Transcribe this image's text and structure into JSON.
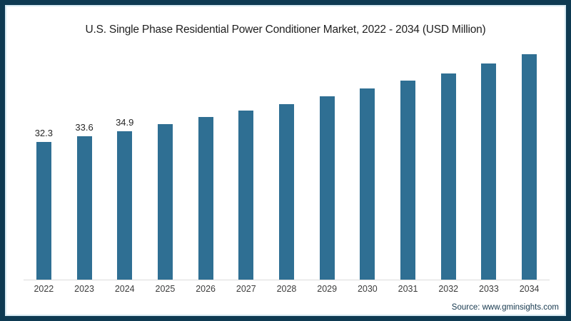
{
  "frame": {
    "border_color": "#0e3a52",
    "inner_stripe_color": "#d6e9f2"
  },
  "footer": {
    "source": "Source: www.gminsights.com"
  },
  "chart_data": {
    "type": "bar",
    "title": "U.S. Single Phase Residential Power Conditioner Market, 2022 - 2034 (USD Million)",
    "categories": [
      "2022",
      "2023",
      "2024",
      "2025",
      "2026",
      "2027",
      "2028",
      "2029",
      "2030",
      "2031",
      "2032",
      "2033",
      "2034"
    ],
    "values": [
      32.3,
      33.6,
      34.9,
      36.5,
      38.1,
      39.7,
      41.2,
      43.0,
      44.8,
      46.6,
      48.3,
      50.6,
      52.9
    ],
    "data_labels": [
      "32.3",
      "33.6",
      "34.9"
    ],
    "data_labels_shown_count": 3,
    "bar_color": "#2f6f93",
    "xlabel": "",
    "ylabel": "",
    "ylim": [
      0,
      55
    ],
    "grid": false,
    "legend": false
  }
}
